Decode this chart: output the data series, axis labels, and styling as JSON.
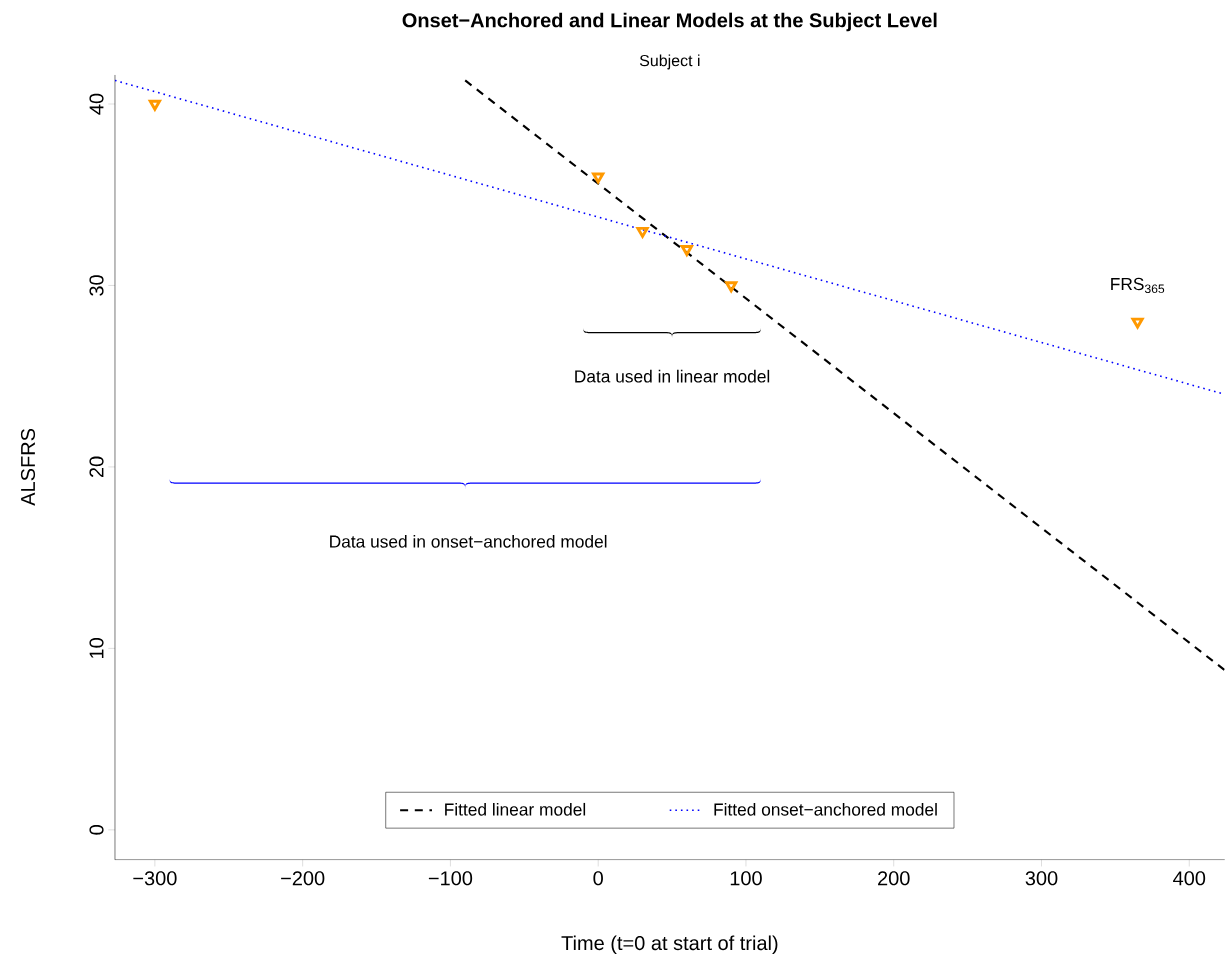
{
  "chart_data": {
    "type": "line",
    "title": "Onset−Anchored and Linear Models at the Subject Level",
    "subtitle": "Subject i",
    "xlabel": "Time (t=0 at start of trial)",
    "ylabel": "ALSFRS",
    "xlim": [
      -327,
      424
    ],
    "ylim": [
      -1.65,
      41.6
    ],
    "xticks": [
      {
        "value": -300,
        "label": "−300"
      },
      {
        "value": -200,
        "label": "−200"
      },
      {
        "value": -100,
        "label": "−100"
      },
      0,
      100,
      200,
      300,
      400
    ],
    "yticks": [
      0,
      10,
      20,
      30,
      40
    ],
    "legend": "bottom",
    "series": [
      {
        "name": "Fitted linear model",
        "color": "#000000",
        "line_style": "dashed",
        "x": [
          -90,
          424
        ],
        "values": [
          41.3,
          8.8
        ]
      },
      {
        "name": "Fitted onset−anchored model",
        "color": "#0000ff",
        "line_style": "dotted",
        "x": [
          -327,
          424
        ],
        "values": [
          41.3,
          24.0
        ]
      },
      {
        "type": "scatter",
        "color": "#ff9900",
        "marker": "triangle",
        "x": [
          -300,
          0,
          30,
          60,
          90,
          365
        ],
        "values": [
          40,
          36,
          33,
          32,
          30,
          28
        ]
      }
    ],
    "annotations": [
      "Data used in linear model",
      "Data used in onset−anchored model",
      "FRS$_{365}$"
    ]
  }
}
